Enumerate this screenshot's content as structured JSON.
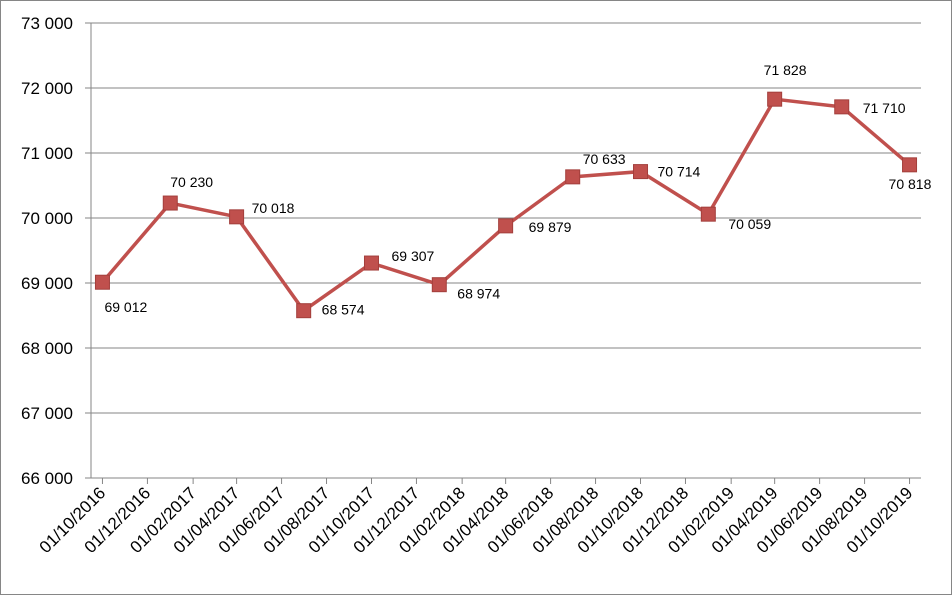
{
  "chart_data": {
    "type": "line",
    "title": "",
    "xlabel": "",
    "ylabel": "",
    "x": [
      "01/10/2016",
      "01/12/2016",
      "01/02/2017",
      "01/04/2017",
      "01/06/2017",
      "01/08/2017",
      "01/10/2017",
      "01/12/2017",
      "01/02/2018",
      "01/04/2018",
      "01/06/2018",
      "01/08/2018",
      "01/10/2018",
      "01/12/2018",
      "01/02/2019",
      "01/04/2019",
      "01/06/2019",
      "01/08/2019",
      "01/10/2019"
    ],
    "ylim": [
      66000,
      73000
    ],
    "yticks": [
      66000,
      67000,
      68000,
      69000,
      70000,
      71000,
      72000,
      73000
    ],
    "ytick_labels": [
      "66 000",
      "67 000",
      "68 000",
      "69 000",
      "70 000",
      "71 000",
      "72 000",
      "73 000"
    ],
    "grid": true,
    "series": [
      {
        "color": "#c0504d",
        "marker_color": "#c0504d",
        "points": [
          {
            "x": "01/10/2016",
            "y": 69012,
            "label": "69 012"
          },
          {
            "x": "01/01/2017",
            "y": 70230,
            "label": "70 230"
          },
          {
            "x": "01/04/2017",
            "y": 70018,
            "label": "70 018"
          },
          {
            "x": "01/07/2017",
            "y": 68574,
            "label": "68 574"
          },
          {
            "x": "01/10/2017",
            "y": 69307,
            "label": "69 307"
          },
          {
            "x": "01/01/2018",
            "y": 68974,
            "label": "68 974"
          },
          {
            "x": "01/04/2018",
            "y": 69879,
            "label": "69 879"
          },
          {
            "x": "01/07/2018",
            "y": 70633,
            "label": "70 633"
          },
          {
            "x": "01/10/2018",
            "y": 70714,
            "label": "70 714"
          },
          {
            "x": "01/01/2019",
            "y": 70059,
            "label": "70 059"
          },
          {
            "x": "01/04/2019",
            "y": 71828,
            "label": "71 828"
          },
          {
            "x": "01/07/2019",
            "y": 71710,
            "label": "71 710"
          },
          {
            "x": "01/10/2019",
            "y": 70818,
            "label": "70 818"
          }
        ]
      }
    ]
  }
}
